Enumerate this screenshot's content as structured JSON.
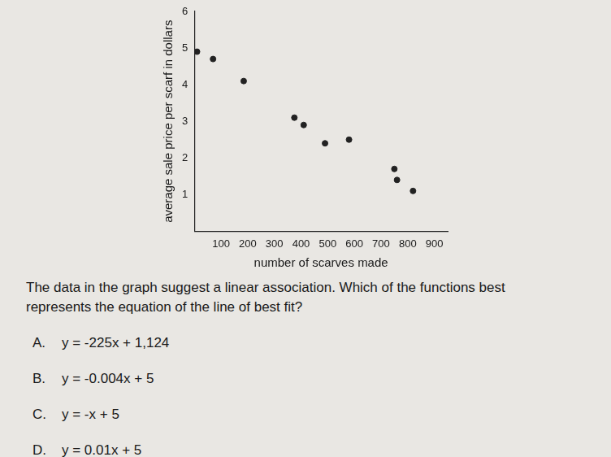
{
  "chart_data": {
    "type": "scatter",
    "xlabel": "number of scarves made",
    "ylabel": "average sale price per scarf in dollars",
    "x": [
      10,
      70,
      185,
      375,
      410,
      490,
      580,
      750,
      760,
      820
    ],
    "values": [
      4.9,
      4.7,
      4.1,
      3.1,
      2.9,
      2.4,
      2.5,
      1.7,
      1.4,
      1.1
    ],
    "xlim": [
      0,
      950
    ],
    "xticks": [
      100,
      200,
      300,
      400,
      500,
      600,
      700,
      800,
      900
    ],
    "ylim": [
      0,
      6
    ],
    "yticks": [
      1,
      2,
      3,
      4,
      5,
      6
    ],
    "grid": false,
    "color": "#222222",
    "marker": "circle"
  },
  "question": {
    "prompt": "The data in the graph suggest a linear association. Which of the functions best represents the equation of the line of best fit?",
    "choices": [
      {
        "label": "A.",
        "text": "y = -225x + 1,124"
      },
      {
        "label": "B.",
        "text": "y = -0.004x + 5"
      },
      {
        "label": "C.",
        "text": "y = -x + 5"
      },
      {
        "label": "D.",
        "text": "y = 0.01x + 5"
      }
    ]
  }
}
